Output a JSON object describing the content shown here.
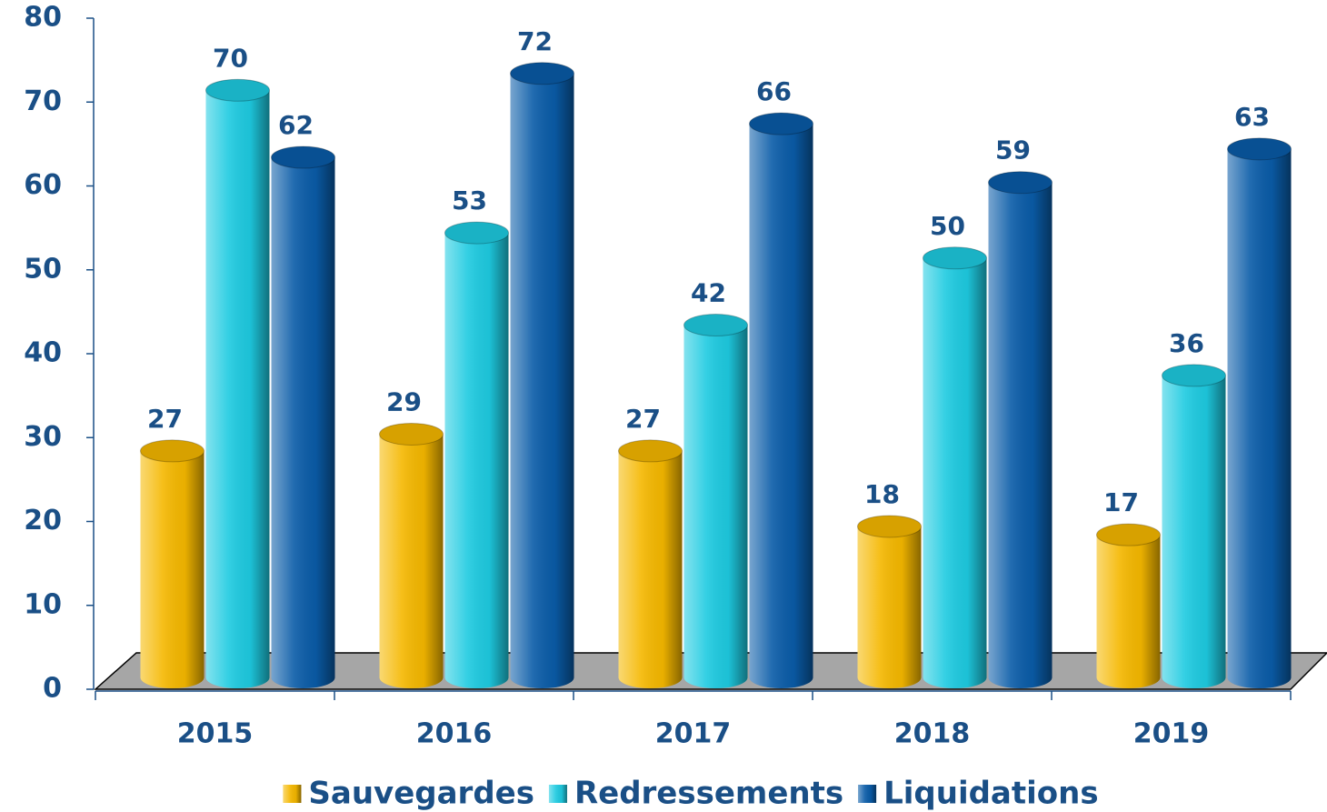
{
  "chart_data": {
    "type": "bar",
    "categories": [
      "2015",
      "2016",
      "2017",
      "2018",
      "2019"
    ],
    "series": [
      {
        "name": "Sauvegardes",
        "color": "#f5b800",
        "values": [
          27,
          29,
          27,
          18,
          17
        ]
      },
      {
        "name": "Redressements",
        "color": "#1ecbe1",
        "values": [
          70,
          53,
          42,
          50,
          36
        ]
      },
      {
        "name": "Liquidations",
        "color": "#0a5ca8",
        "values": [
          62,
          72,
          66,
          59,
          63
        ]
      }
    ],
    "ylim": [
      0,
      80
    ],
    "yticks": [
      0,
      10,
      20,
      30,
      40,
      50,
      60,
      70,
      80
    ],
    "legend": "bottom"
  }
}
